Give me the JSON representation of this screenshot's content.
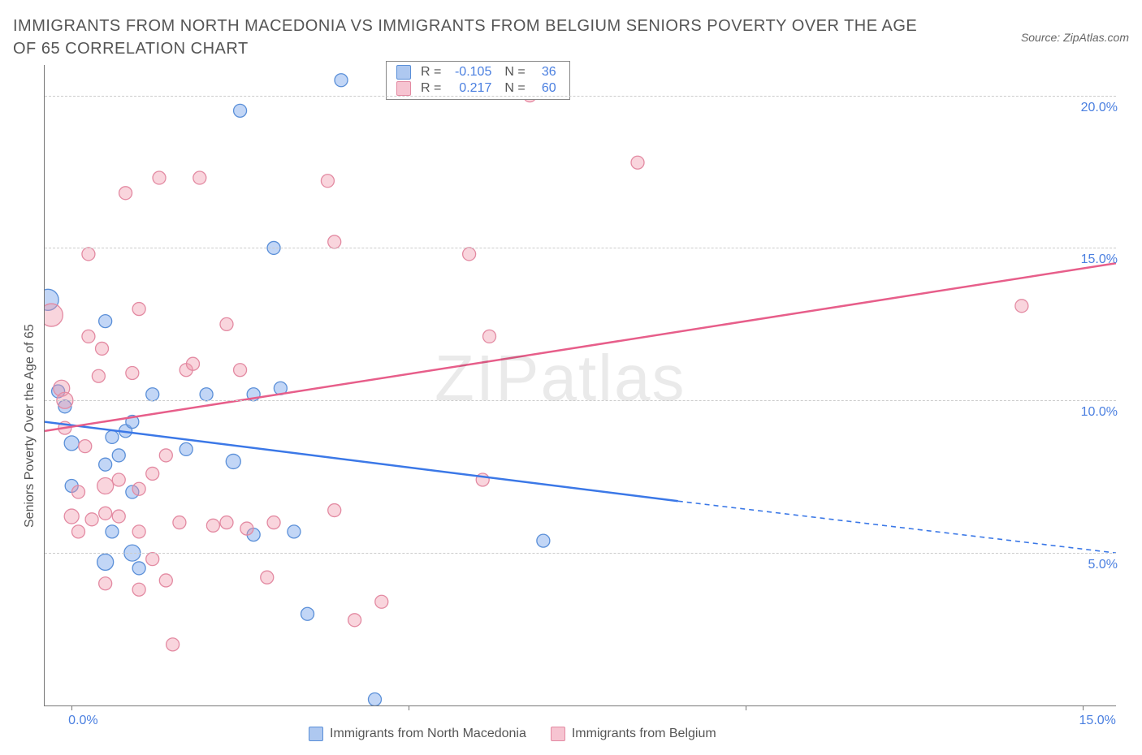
{
  "title": "IMMIGRANTS FROM NORTH MACEDONIA VS IMMIGRANTS FROM BELGIUM SENIORS POVERTY OVER THE AGE OF 65 CORRELATION CHART",
  "source": "Source: ZipAtlas.com",
  "y_axis_title": "Seniors Poverty Over the Age of 65",
  "watermark_a": "ZIP",
  "watermark_b": "atlas",
  "chart": {
    "type": "scatter",
    "xlim": [
      -0.4,
      15.5
    ],
    "ylim": [
      0,
      21
    ],
    "x_ticks": [
      0,
      5,
      10,
      15
    ],
    "x_tick_labels": {
      "0": "0.0%",
      "15": "15.0%"
    },
    "y_ticks": [
      5,
      10,
      15,
      20
    ],
    "y_tick_labels": {
      "5": "5.0%",
      "10": "10.0%",
      "15": "15.0%",
      "20": "20.0%"
    },
    "background_color": "#ffffff",
    "grid_color": "#cccccc",
    "series": [
      {
        "name": "Immigrants from North Macedonia",
        "label": "Immigrants from North Macedonia",
        "color_fill": "rgba(120,165,235,0.45)",
        "color_stroke": "#5a8fd8",
        "legend_swatch_fill": "#aec8f0",
        "legend_swatch_stroke": "#5a8fd8",
        "R": "-0.105",
        "N": "36",
        "trend": {
          "x1": -0.4,
          "y1": 9.3,
          "x2": 9.0,
          "y2": 6.7,
          "x2_dash": 15.5,
          "y2_dash": 5.0,
          "color": "#3b78e7",
          "width": 2.5
        },
        "points": [
          {
            "x": -0.35,
            "y": 13.3,
            "r": 13
          },
          {
            "x": -0.2,
            "y": 10.3,
            "r": 8
          },
          {
            "x": -0.1,
            "y": 9.8,
            "r": 8
          },
          {
            "x": 0.0,
            "y": 8.6,
            "r": 9
          },
          {
            "x": 0.0,
            "y": 7.2,
            "r": 8
          },
          {
            "x": 0.5,
            "y": 12.6,
            "r": 8
          },
          {
            "x": 0.5,
            "y": 7.9,
            "r": 8
          },
          {
            "x": 0.5,
            "y": 4.7,
            "r": 10
          },
          {
            "x": 0.6,
            "y": 8.8,
            "r": 8
          },
          {
            "x": 0.6,
            "y": 5.7,
            "r": 8
          },
          {
            "x": 0.7,
            "y": 8.2,
            "r": 8
          },
          {
            "x": 0.8,
            "y": 9.0,
            "r": 8
          },
          {
            "x": 0.9,
            "y": 7.0,
            "r": 8
          },
          {
            "x": 0.9,
            "y": 9.3,
            "r": 8
          },
          {
            "x": 0.9,
            "y": 5.0,
            "r": 10
          },
          {
            "x": 1.0,
            "y": 4.5,
            "r": 8
          },
          {
            "x": 1.2,
            "y": 10.2,
            "r": 8
          },
          {
            "x": 1.7,
            "y": 8.4,
            "r": 8
          },
          {
            "x": 2.0,
            "y": 10.2,
            "r": 8
          },
          {
            "x": 2.4,
            "y": 8.0,
            "r": 9
          },
          {
            "x": 2.5,
            "y": 19.5,
            "r": 8
          },
          {
            "x": 2.7,
            "y": 10.2,
            "r": 8
          },
          {
            "x": 2.7,
            "y": 5.6,
            "r": 8
          },
          {
            "x": 3.0,
            "y": 15.0,
            "r": 8
          },
          {
            "x": 3.1,
            "y": 10.4,
            "r": 8
          },
          {
            "x": 3.3,
            "y": 5.7,
            "r": 8
          },
          {
            "x": 3.5,
            "y": 3.0,
            "r": 8
          },
          {
            "x": 4.0,
            "y": 20.5,
            "r": 8
          },
          {
            "x": 4.5,
            "y": 0.2,
            "r": 8
          },
          {
            "x": 7.0,
            "y": 5.4,
            "r": 8
          }
        ]
      },
      {
        "name": "Immigrants from Belgium",
        "label": "Immigrants from Belgium",
        "color_fill": "rgba(240,150,170,0.40)",
        "color_stroke": "#e38aa2",
        "legend_swatch_fill": "#f6c4d1",
        "legend_swatch_stroke": "#e38aa2",
        "R": "0.217",
        "N": "60",
        "trend": {
          "x1": -0.4,
          "y1": 9.0,
          "x2": 15.5,
          "y2": 14.5,
          "color": "#e75e8a",
          "width": 2.5
        },
        "points": [
          {
            "x": -0.3,
            "y": 12.8,
            "r": 14
          },
          {
            "x": -0.15,
            "y": 10.4,
            "r": 10
          },
          {
            "x": -0.1,
            "y": 10.0,
            "r": 10
          },
          {
            "x": -0.1,
            "y": 9.1,
            "r": 8
          },
          {
            "x": 0.0,
            "y": 6.2,
            "r": 9
          },
          {
            "x": 0.1,
            "y": 5.7,
            "r": 8
          },
          {
            "x": 0.1,
            "y": 7.0,
            "r": 8
          },
          {
            "x": 0.2,
            "y": 8.5,
            "r": 8
          },
          {
            "x": 0.25,
            "y": 12.1,
            "r": 8
          },
          {
            "x": 0.25,
            "y": 14.8,
            "r": 8
          },
          {
            "x": 0.3,
            "y": 6.1,
            "r": 8
          },
          {
            "x": 0.4,
            "y": 10.8,
            "r": 8
          },
          {
            "x": 0.45,
            "y": 11.7,
            "r": 8
          },
          {
            "x": 0.5,
            "y": 7.2,
            "r": 10
          },
          {
            "x": 0.5,
            "y": 6.3,
            "r": 8
          },
          {
            "x": 0.5,
            "y": 4.0,
            "r": 8
          },
          {
            "x": 0.7,
            "y": 7.4,
            "r": 8
          },
          {
            "x": 0.7,
            "y": 6.2,
            "r": 8
          },
          {
            "x": 0.8,
            "y": 16.8,
            "r": 8
          },
          {
            "x": 0.9,
            "y": 10.9,
            "r": 8
          },
          {
            "x": 1.0,
            "y": 13.0,
            "r": 8
          },
          {
            "x": 1.0,
            "y": 7.1,
            "r": 8
          },
          {
            "x": 1.0,
            "y": 5.7,
            "r": 8
          },
          {
            "x": 1.0,
            "y": 3.8,
            "r": 8
          },
          {
            "x": 1.2,
            "y": 7.6,
            "r": 8
          },
          {
            "x": 1.2,
            "y": 4.8,
            "r": 8
          },
          {
            "x": 1.3,
            "y": 17.3,
            "r": 8
          },
          {
            "x": 1.4,
            "y": 8.2,
            "r": 8
          },
          {
            "x": 1.4,
            "y": 4.1,
            "r": 8
          },
          {
            "x": 1.5,
            "y": 2.0,
            "r": 8
          },
          {
            "x": 1.6,
            "y": 6.0,
            "r": 8
          },
          {
            "x": 1.7,
            "y": 11.0,
            "r": 8
          },
          {
            "x": 1.8,
            "y": 11.2,
            "r": 8
          },
          {
            "x": 1.9,
            "y": 17.3,
            "r": 8
          },
          {
            "x": 2.1,
            "y": 5.9,
            "r": 8
          },
          {
            "x": 2.3,
            "y": 12.5,
            "r": 8
          },
          {
            "x": 2.3,
            "y": 6.0,
            "r": 8
          },
          {
            "x": 2.5,
            "y": 11.0,
            "r": 8
          },
          {
            "x": 2.6,
            "y": 5.8,
            "r": 8
          },
          {
            "x": 2.9,
            "y": 4.2,
            "r": 8
          },
          {
            "x": 3.0,
            "y": 6.0,
            "r": 8
          },
          {
            "x": 3.8,
            "y": 17.2,
            "r": 8
          },
          {
            "x": 3.9,
            "y": 15.2,
            "r": 8
          },
          {
            "x": 3.9,
            "y": 6.4,
            "r": 8
          },
          {
            "x": 4.2,
            "y": 2.8,
            "r": 8
          },
          {
            "x": 4.6,
            "y": 3.4,
            "r": 8
          },
          {
            "x": 5.9,
            "y": 14.8,
            "r": 8
          },
          {
            "x": 6.1,
            "y": 7.4,
            "r": 8
          },
          {
            "x": 6.2,
            "y": 12.1,
            "r": 8
          },
          {
            "x": 6.8,
            "y": 20.0,
            "r": 8
          },
          {
            "x": 8.4,
            "y": 17.8,
            "r": 8
          },
          {
            "x": 14.1,
            "y": 13.1,
            "r": 8
          }
        ]
      }
    ]
  },
  "legend_top": {
    "R_label": "R =",
    "N_label": "N ="
  }
}
